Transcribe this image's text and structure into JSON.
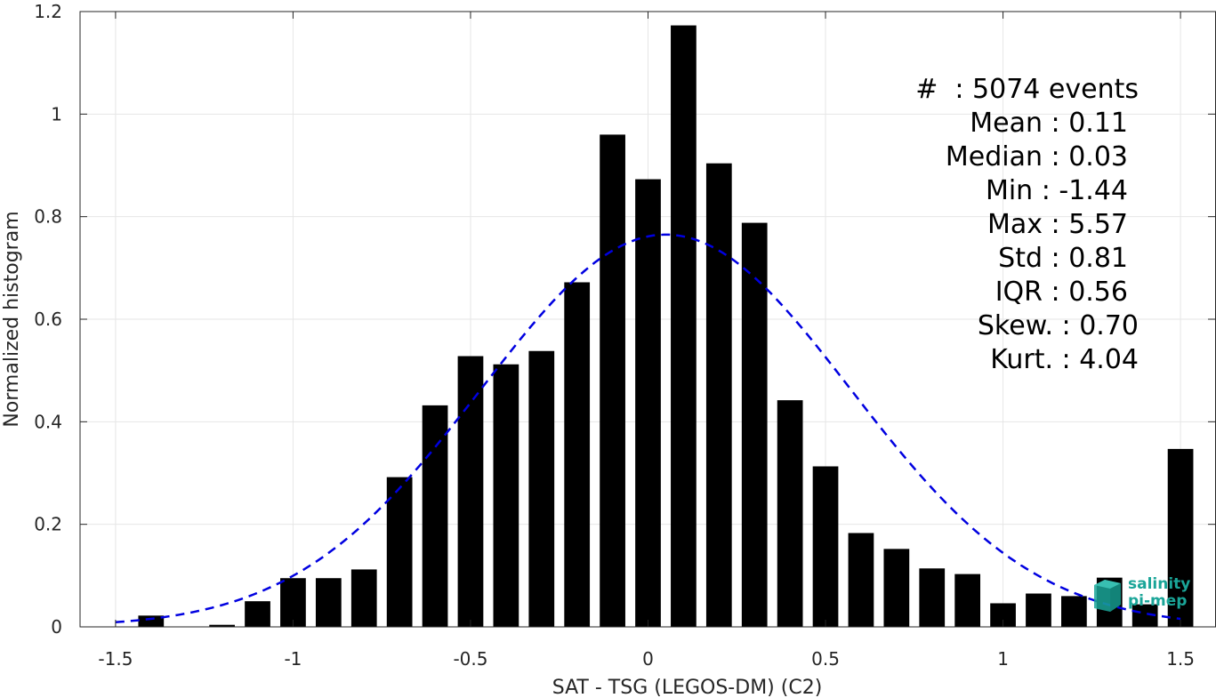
{
  "chart_data": {
    "type": "bar",
    "xlabel": "SAT - TSG (LEGOS-DM) (C2)",
    "ylabel": "Normalized histogram",
    "xlim": [
      -1.6,
      1.6
    ],
    "ylim": [
      0,
      1.2
    ],
    "xticks": [
      "-1.5",
      "-1",
      "-0.5",
      "0",
      "0.5",
      "1",
      "1.5"
    ],
    "xtick_values": [
      -1.5,
      -1,
      -0.5,
      0,
      0.5,
      1,
      1.5
    ],
    "yticks": [
      "0",
      "0.2",
      "0.4",
      "0.6",
      "0.8",
      "1",
      "1.2"
    ],
    "ytick_values": [
      0,
      0.2,
      0.4,
      0.6,
      0.8,
      1,
      1.2
    ],
    "grid": true,
    "bar_color": "#000000",
    "bin_width": 0.1,
    "bin_centers": [
      -1.4,
      -1.3,
      -1.2,
      -1.1,
      -1.0,
      -0.9,
      -0.8,
      -0.7,
      -0.6,
      -0.5,
      -0.4,
      -0.3,
      -0.2,
      -0.1,
      0.0,
      0.1,
      0.2,
      0.3,
      0.4,
      0.5,
      0.6,
      0.7,
      0.8,
      0.9,
      1.0,
      1.1,
      1.2,
      1.3,
      1.4,
      1.5
    ],
    "values": [
      0.022,
      0.0,
      0.004,
      0.05,
      0.095,
      0.095,
      0.112,
      0.292,
      0.432,
      0.528,
      0.512,
      0.538,
      0.672,
      0.96,
      0.873,
      1.173,
      0.904,
      0.788,
      0.442,
      0.313,
      0.183,
      0.152,
      0.114,
      0.103,
      0.046,
      0.065,
      0.06,
      0.096,
      0.044,
      0.347
    ],
    "fit_curve": {
      "type": "normal",
      "mean": 0.05,
      "std": 0.52,
      "peak": 0.765,
      "x_range": [
        -1.5,
        1.5
      ],
      "color": "#0000e0",
      "style": "dashed"
    }
  },
  "stats": {
    "lines": [
      "#  : 5074 events",
      "Mean : 0.11",
      "Median : 0.03",
      "Min : -1.44",
      "Max : 5.57",
      "Std : 0.81",
      "IQR : 0.56",
      "Skew. : 0.70",
      "Kurt. : 4.04"
    ]
  },
  "logo": {
    "line1": "salinity",
    "line2": "pi-mep"
  }
}
